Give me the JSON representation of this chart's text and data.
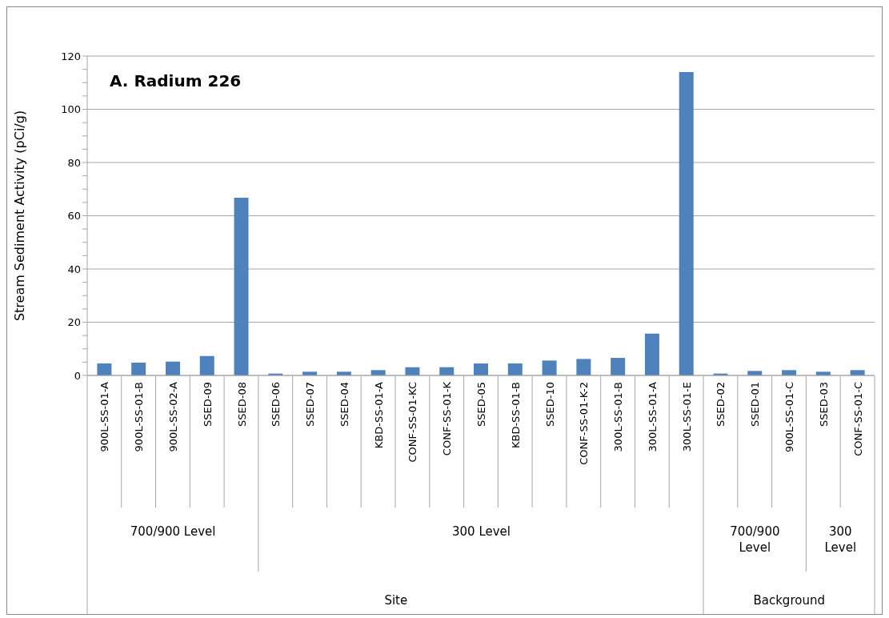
{
  "chart_data": {
    "type": "bar",
    "title": "A.  Radium 226",
    "ylabel": "Stream Sediment Activity (pCi/g)",
    "categories": [
      "900L-SS-01-A",
      "900L-SS-01-B",
      "900L-SS-02-A",
      "SSED-09",
      "SSED-08",
      "SSED-06",
      "SSED-07",
      "SSED-04",
      "KBD-SS-01-A",
      "CONF-SS-01-KC",
      "CONF-SS-01-K",
      "SSED-05",
      "KBD-SS-01-B",
      "SSED-10",
      "CONF-SS-01-K-2",
      "300L-SS-01-B",
      "300L-SS-01-A",
      "300L-SS-01-E",
      "SSED-02",
      "SSED-01",
      "900L-SS-01-C",
      "SSED-03",
      "CONF-SS-01-C"
    ],
    "values": [
      4.5,
      4.8,
      5.2,
      7.3,
      66.8,
      0.7,
      1.4,
      1.4,
      2.0,
      3.1,
      3.1,
      4.5,
      4.5,
      5.6,
      6.2,
      6.6,
      15.7,
      114,
      0.7,
      1.7,
      2.0,
      1.4,
      2.0
    ],
    "color": "#4f81bd",
    "ylim": [
      0,
      120
    ],
    "yticks": [
      0,
      {
        "value": 5,
        "label": null
      },
      {
        "value": 10,
        "label": null
      },
      {
        "value": 15,
        "label": null
      },
      20,
      {
        "value": 25,
        "label": null
      },
      {
        "value": 30,
        "label": null
      },
      {
        "value": 35,
        "label": null
      },
      40,
      {
        "value": 45,
        "label": null
      },
      {
        "value": 50,
        "label": null
      },
      {
        "value": 55,
        "label": null
      },
      60,
      {
        "value": 65,
        "label": null
      },
      {
        "value": 70,
        "label": null
      },
      {
        "value": 75,
        "label": null
      },
      80,
      {
        "value": 85,
        "label": null
      },
      {
        "value": 90,
        "label": null
      },
      {
        "value": 95,
        "label": null
      },
      100,
      {
        "value": 105,
        "label": null
      },
      {
        "value": 110,
        "label": null
      },
      {
        "value": 115,
        "label": null
      },
      120
    ],
    "grid": "y",
    "annotations": [
      "700/900 Level",
      "300 Level",
      "700/900 Level",
      "300 Level",
      "Site",
      "Background"
    ]
  }
}
